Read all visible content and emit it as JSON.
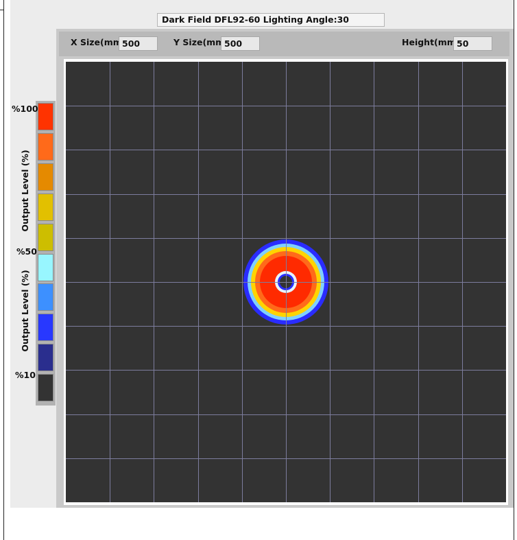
{
  "title": "Dark Field DFL92-60 Lighting Angle:30",
  "toolbar": {
    "x_size_label": "X Size(mm)",
    "x_size_value": "500",
    "y_size_label": "Y Size(mm)",
    "y_size_value": "500",
    "height_label": "Height(mm)",
    "height_value": "50"
  },
  "legend": {
    "label_100": "%100",
    "label_50": "%50",
    "label_10": "%10",
    "axis_label_upper": "Output Level (%)",
    "axis_label_lower": "Output Level (%)",
    "swatches": [
      "#ff3300",
      "#ff6a1a",
      "#e58a00",
      "#e2c000",
      "#cdbe00",
      "#98f6ff",
      "#3d90ff",
      "#2838ff",
      "#2a2e8e",
      "#333333"
    ]
  },
  "plot": {
    "background": "#333333",
    "grid_color": "#7d7d9e",
    "grid_divisions": 10,
    "ring_colors": {
      "outer_blue": "#2a2cff",
      "light_blue": "#7fd0ff",
      "yellow": "#ffd400",
      "orange": "#ff6a1a",
      "red": "#ff2a00",
      "inner_white": "#e6f3ff",
      "inner_blue": "#2a2cff"
    }
  }
}
